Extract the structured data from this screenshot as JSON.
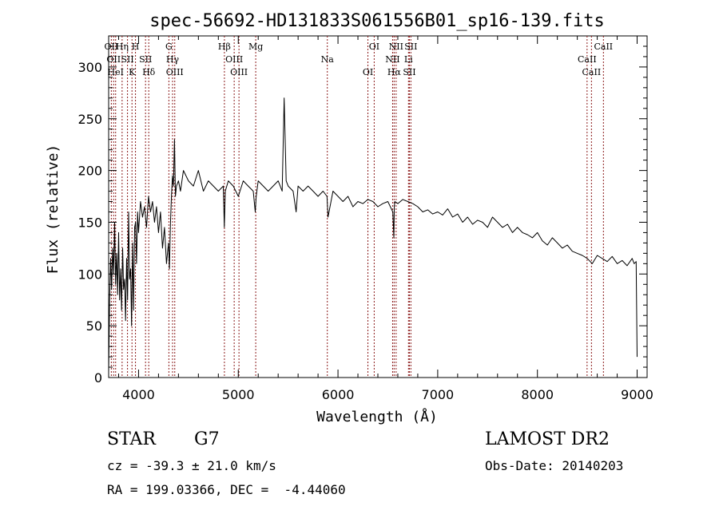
{
  "chart_data": {
    "type": "line",
    "title": "spec-56692-HD131833S061556B01_sp16-139.fits",
    "xlabel": "Wavelength (Å)",
    "ylabel": "Flux (relative)",
    "xlim": [
      3700,
      9100
    ],
    "ylim": [
      0,
      330
    ],
    "xticks": [
      4000,
      5000,
      6000,
      7000,
      8000,
      9000
    ],
    "yticks": [
      0,
      50,
      100,
      150,
      200,
      250,
      300
    ],
    "grid": false,
    "colors": {
      "line": "#000000",
      "marker": "#8b1a1a"
    },
    "series": [
      {
        "x": [
          3700,
          3710,
          3720,
          3730,
          3740,
          3750,
          3760,
          3770,
          3780,
          3790,
          3800,
          3810,
          3820,
          3830,
          3840,
          3850,
          3860,
          3870,
          3880,
          3890,
          3900,
          3910,
          3920,
          3930,
          3940,
          3950,
          3960,
          3970,
          3980,
          3990,
          4000,
          4020,
          4040,
          4060,
          4080,
          4100,
          4120,
          4140,
          4160,
          4180,
          4200,
          4220,
          4240,
          4260,
          4280,
          4300,
          4310,
          4320,
          4330,
          4340,
          4350,
          4360,
          4370,
          4380,
          4400,
          4420,
          4450,
          4500,
          4550,
          4600,
          4650,
          4700,
          4750,
          4800,
          4850,
          4860,
          4870,
          4900,
          4950,
          5000,
          5050,
          5100,
          5150,
          5170,
          5180,
          5200,
          5250,
          5300,
          5350,
          5400,
          5440,
          5460,
          5480,
          5500,
          5550,
          5580,
          5600,
          5650,
          5700,
          5750,
          5800,
          5850,
          5890,
          5900,
          5950,
          6000,
          6050,
          6100,
          6150,
          6200,
          6250,
          6300,
          6350,
          6400,
          6450,
          6500,
          6550,
          6560,
          6565,
          6570,
          6600,
          6650,
          6700,
          6750,
          6800,
          6850,
          6900,
          6950,
          7000,
          7050,
          7100,
          7150,
          7200,
          7250,
          7300,
          7350,
          7400,
          7450,
          7500,
          7550,
          7600,
          7650,
          7700,
          7750,
          7800,
          7850,
          7900,
          7950,
          8000,
          8050,
          8100,
          8150,
          8200,
          8250,
          8300,
          8350,
          8400,
          8450,
          8500,
          8550,
          8600,
          8650,
          8700,
          8750,
          8800,
          8850,
          8900,
          8950,
          8970,
          8990,
          9000
        ],
        "y": [
          5,
          75,
          115,
          85,
          125,
          100,
          150,
          90,
          120,
          80,
          140,
          75,
          105,
          65,
          125,
          85,
          95,
          55,
          115,
          75,
          160,
          95,
          105,
          50,
          130,
          65,
          145,
          150,
          110,
          160,
          140,
          170,
          155,
          165,
          145,
          175,
          160,
          170,
          150,
          165,
          140,
          160,
          125,
          145,
          110,
          130,
          105,
          150,
          175,
          195,
          185,
          230,
          175,
          185,
          190,
          180,
          200,
          190,
          185,
          200,
          180,
          190,
          185,
          180,
          185,
          145,
          180,
          190,
          185,
          175,
          190,
          185,
          180,
          160,
          175,
          190,
          185,
          180,
          185,
          190,
          180,
          270,
          190,
          185,
          180,
          160,
          185,
          180,
          185,
          180,
          175,
          180,
          175,
          155,
          180,
          175,
          170,
          175,
          165,
          170,
          168,
          172,
          170,
          165,
          168,
          170,
          160,
          135,
          165,
          170,
          168,
          172,
          170,
          168,
          165,
          160,
          162,
          158,
          160,
          157,
          163,
          155,
          158,
          150,
          155,
          148,
          152,
          150,
          145,
          155,
          150,
          145,
          148,
          140,
          145,
          140,
          138,
          135,
          140,
          132,
          128,
          135,
          130,
          125,
          128,
          122,
          120,
          118,
          115,
          110,
          118,
          115,
          112,
          117,
          110,
          113,
          108,
          115,
          110,
          112,
          20
        ]
      }
    ],
    "line_markers": [
      {
        "x": 3727,
        "labels": [
          "OII"
        ]
      },
      {
        "x": 3750,
        "labels": [
          "OII"
        ]
      },
      {
        "x": 3770,
        "labels": [
          "HeI"
        ]
      },
      {
        "x": 3835,
        "labels": [
          "Hη"
        ]
      },
      {
        "x": 3889,
        "labels": [
          "SII"
        ]
      },
      {
        "x": 3934,
        "labels": [
          "K"
        ]
      },
      {
        "x": 3969,
        "labels": [
          "H"
        ]
      },
      {
        "x": 4070,
        "labels": [
          "SII"
        ]
      },
      {
        "x": 4102,
        "labels": [
          "Hδ"
        ]
      },
      {
        "x": 4304,
        "labels": [
          "G"
        ]
      },
      {
        "x": 4341,
        "labels": [
          "Hγ"
        ]
      },
      {
        "x": 4363,
        "labels": [
          "OIII"
        ]
      },
      {
        "x": 4861,
        "labels": [
          "Hβ"
        ]
      },
      {
        "x": 4959,
        "labels": [
          "OIII"
        ]
      },
      {
        "x": 5007,
        "labels": [
          "OIII"
        ]
      },
      {
        "x": 5175,
        "labels": [
          "Mg"
        ]
      },
      {
        "x": 5893,
        "labels": [
          "Na"
        ]
      },
      {
        "x": 6300,
        "labels": [
          "OI"
        ]
      },
      {
        "x": 6363,
        "labels": [
          "OI"
        ]
      },
      {
        "x": 6548,
        "labels": [
          "NII"
        ]
      },
      {
        "x": 6563,
        "labels": [
          "Hα"
        ]
      },
      {
        "x": 6583,
        "labels": [
          "NII"
        ]
      },
      {
        "x": 6707,
        "labels": [
          "Li"
        ]
      },
      {
        "x": 6716,
        "labels": [
          "SII"
        ]
      },
      {
        "x": 6731,
        "labels": [
          "SII"
        ]
      },
      {
        "x": 8498,
        "labels": [
          "CaII"
        ]
      },
      {
        "x": 8542,
        "labels": [
          "CaII"
        ]
      },
      {
        "x": 8662,
        "labels": [
          "CaII"
        ]
      }
    ]
  },
  "info": {
    "obj_class": "STAR",
    "subclass": "G7",
    "survey": "LAMOST DR2",
    "redshift": "cz = -39.3 ± 21.0 km/s",
    "obs_date": "Obs-Date: 20140203",
    "coords": "RA = 199.03366, DEC =  -4.44060"
  }
}
